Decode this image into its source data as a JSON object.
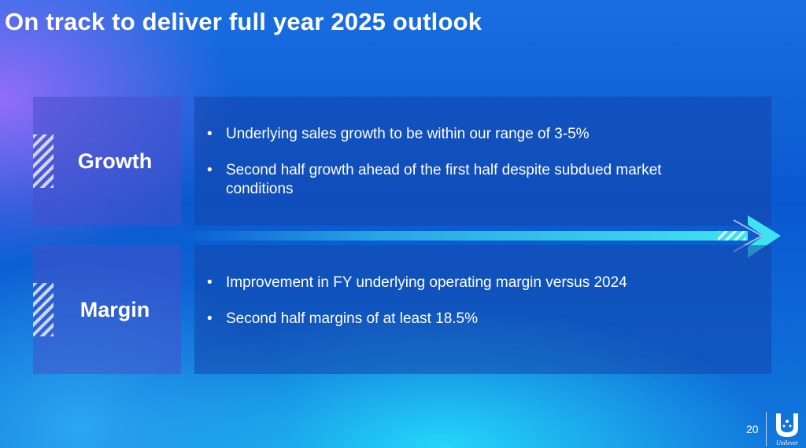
{
  "title": "On track to deliver full year 2025 outlook",
  "sections": [
    {
      "label": "Growth",
      "bullets": [
        "Underlying sales growth to be within our range of 3-5%",
        "Second half growth ahead of the first half despite subdued market conditions"
      ]
    },
    {
      "label": "Margin",
      "bullets": [
        "Improvement in FY underlying operating margin versus 2024",
        "Second half margins of at least 18.5%"
      ]
    }
  ],
  "bullet_glyph": "•",
  "page_number": "20",
  "logo_text": "Unilever",
  "colors": {
    "arrow": "#3fe3f0",
    "text": "#ffffff"
  }
}
